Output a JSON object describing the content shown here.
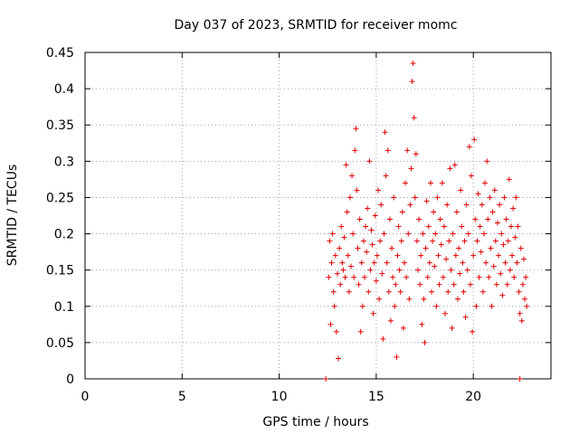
{
  "chart_data": {
    "type": "scatter",
    "title": "Day 037 of 2023, SRMTID for receiver momc",
    "xlabel": "GPS time / hours",
    "ylabel": "SRMTID / TECUs",
    "xlim": [
      0,
      24
    ],
    "ylim": [
      0,
      0.45
    ],
    "xticks": [
      0,
      5,
      10,
      15,
      20
    ],
    "xtick_labels": [
      "0",
      "5",
      "10",
      "15",
      "20"
    ],
    "yticks": [
      0,
      0.05,
      0.1,
      0.15,
      0.2,
      0.25,
      0.3,
      0.35,
      0.4,
      0.45
    ],
    "ytick_labels": [
      "0",
      "0.05",
      "0.1",
      "0.15",
      "0.2",
      "0.25",
      "0.3",
      "0.35",
      "0.4",
      "0.45"
    ],
    "grid": true,
    "marker": "plus",
    "color": "#e00000",
    "series": [
      {
        "name": "SRMTID",
        "points": [
          [
            12.4,
            0.0
          ],
          [
            22.4,
            0.0
          ],
          [
            12.55,
            0.14
          ],
          [
            12.6,
            0.19
          ],
          [
            12.65,
            0.075
          ],
          [
            12.7,
            0.16
          ],
          [
            12.75,
            0.2
          ],
          [
            12.8,
            0.12
          ],
          [
            12.85,
            0.1
          ],
          [
            12.9,
            0.17
          ],
          [
            12.95,
            0.065
          ],
          [
            13.0,
            0.145
          ],
          [
            13.05,
            0.028
          ],
          [
            13.1,
            0.18
          ],
          [
            13.15,
            0.13
          ],
          [
            13.2,
            0.21
          ],
          [
            13.25,
            0.16
          ],
          [
            13.3,
            0.15
          ],
          [
            13.35,
            0.195
          ],
          [
            13.4,
            0.14
          ],
          [
            13.45,
            0.295
          ],
          [
            13.5,
            0.23
          ],
          [
            13.55,
            0.17
          ],
          [
            13.6,
            0.12
          ],
          [
            13.65,
            0.25
          ],
          [
            13.7,
            0.155
          ],
          [
            13.75,
            0.28
          ],
          [
            13.8,
            0.2
          ],
          [
            13.85,
            0.14
          ],
          [
            13.9,
            0.315
          ],
          [
            13.95,
            0.345
          ],
          [
            14.0,
            0.26
          ],
          [
            14.05,
            0.18
          ],
          [
            14.1,
            0.13
          ],
          [
            14.15,
            0.22
          ],
          [
            14.2,
            0.065
          ],
          [
            14.25,
            0.16
          ],
          [
            14.3,
            0.1
          ],
          [
            14.35,
            0.19
          ],
          [
            14.4,
            0.14
          ],
          [
            14.45,
            0.21
          ],
          [
            14.5,
            0.175
          ],
          [
            14.55,
            0.235
          ],
          [
            14.6,
            0.12
          ],
          [
            14.65,
            0.3
          ],
          [
            14.7,
            0.15
          ],
          [
            14.75,
            0.205
          ],
          [
            14.8,
            0.185
          ],
          [
            14.85,
            0.09
          ],
          [
            14.9,
            0.16
          ],
          [
            14.95,
            0.225
          ],
          [
            15.0,
            0.135
          ],
          [
            15.05,
            0.17
          ],
          [
            15.1,
            0.26
          ],
          [
            15.15,
            0.11
          ],
          [
            15.2,
            0.19
          ],
          [
            15.25,
            0.24
          ],
          [
            15.3,
            0.145
          ],
          [
            15.35,
            0.055
          ],
          [
            15.4,
            0.2
          ],
          [
            15.45,
            0.34
          ],
          [
            15.5,
            0.28
          ],
          [
            15.55,
            0.16
          ],
          [
            15.6,
            0.315
          ],
          [
            15.65,
            0.12
          ],
          [
            15.7,
            0.22
          ],
          [
            15.75,
            0.08
          ],
          [
            15.8,
            0.18
          ],
          [
            15.85,
            0.14
          ],
          [
            15.9,
            0.25
          ],
          [
            15.95,
            0.1
          ],
          [
            16.0,
            0.13
          ],
          [
            16.05,
            0.03
          ],
          [
            16.1,
            0.17
          ],
          [
            16.15,
            0.21
          ],
          [
            16.2,
            0.15
          ],
          [
            16.25,
            0.12
          ],
          [
            16.3,
            0.19
          ],
          [
            16.35,
            0.23
          ],
          [
            16.4,
            0.07
          ],
          [
            16.45,
            0.16
          ],
          [
            16.5,
            0.27
          ],
          [
            16.55,
            0.14
          ],
          [
            16.6,
            0.315
          ],
          [
            16.65,
            0.2
          ],
          [
            16.7,
            0.11
          ],
          [
            16.75,
            0.24
          ],
          [
            16.8,
            0.29
          ],
          [
            16.85,
            0.41
          ],
          [
            16.9,
            0.435
          ],
          [
            16.95,
            0.36
          ],
          [
            17.0,
            0.25
          ],
          [
            17.05,
            0.31
          ],
          [
            17.1,
            0.19
          ],
          [
            17.15,
            0.15
          ],
          [
            17.2,
            0.22
          ],
          [
            17.25,
            0.13
          ],
          [
            17.3,
            0.17
          ],
          [
            17.35,
            0.075
          ],
          [
            17.4,
            0.2
          ],
          [
            17.45,
            0.11
          ],
          [
            17.5,
            0.05
          ],
          [
            17.55,
            0.18
          ],
          [
            17.6,
            0.245
          ],
          [
            17.65,
            0.14
          ],
          [
            17.7,
            0.21
          ],
          [
            17.75,
            0.16
          ],
          [
            17.8,
            0.27
          ],
          [
            17.85,
            0.12
          ],
          [
            17.9,
            0.19
          ],
          [
            17.95,
            0.23
          ],
          [
            18.0,
            0.155
          ],
          [
            18.05,
            0.2
          ],
          [
            18.1,
            0.1
          ],
          [
            18.15,
            0.25
          ],
          [
            18.2,
            0.17
          ],
          [
            18.25,
            0.13
          ],
          [
            18.3,
            0.22
          ],
          [
            18.35,
            0.185
          ],
          [
            18.4,
            0.27
          ],
          [
            18.45,
            0.14
          ],
          [
            18.5,
            0.21
          ],
          [
            18.55,
            0.09
          ],
          [
            18.6,
            0.165
          ],
          [
            18.65,
            0.24
          ],
          [
            18.7,
            0.12
          ],
          [
            18.75,
            0.19
          ],
          [
            18.8,
            0.29
          ],
          [
            18.85,
            0.15
          ],
          [
            18.9,
            0.07
          ],
          [
            18.95,
            0.2
          ],
          [
            19.0,
            0.13
          ],
          [
            19.05,
            0.295
          ],
          [
            19.1,
            0.17
          ],
          [
            19.15,
            0.23
          ],
          [
            19.2,
            0.11
          ],
          [
            19.25,
            0.18
          ],
          [
            19.3,
            0.145
          ],
          [
            19.35,
            0.26
          ],
          [
            19.4,
            0.21
          ],
          [
            19.45,
            0.16
          ],
          [
            19.5,
            0.12
          ],
          [
            19.55,
            0.19
          ],
          [
            19.6,
            0.085
          ],
          [
            19.65,
            0.24
          ],
          [
            19.7,
            0.15
          ],
          [
            19.75,
            0.2
          ],
          [
            19.8,
            0.32
          ],
          [
            19.85,
            0.13
          ],
          [
            19.9,
            0.28
          ],
          [
            19.95,
            0.065
          ],
          [
            20.0,
            0.17
          ],
          [
            20.05,
            0.33
          ],
          [
            20.1,
            0.22
          ],
          [
            20.15,
            0.1
          ],
          [
            20.2,
            0.19
          ],
          [
            20.25,
            0.255
          ],
          [
            20.3,
            0.14
          ],
          [
            20.35,
            0.21
          ],
          [
            20.4,
            0.175
          ],
          [
            20.45,
            0.24
          ],
          [
            20.5,
            0.12
          ],
          [
            20.55,
            0.2
          ],
          [
            20.6,
            0.27
          ],
          [
            20.65,
            0.16
          ],
          [
            20.7,
            0.3
          ],
          [
            20.75,
            0.22
          ],
          [
            20.8,
            0.14
          ],
          [
            20.85,
            0.25
          ],
          [
            20.9,
            0.18
          ],
          [
            20.95,
            0.1
          ],
          [
            21.0,
            0.23
          ],
          [
            21.05,
            0.155
          ],
          [
            21.1,
            0.26
          ],
          [
            21.15,
            0.19
          ],
          [
            21.2,
            0.13
          ],
          [
            21.25,
            0.215
          ],
          [
            21.3,
            0.17
          ],
          [
            21.35,
            0.24
          ],
          [
            21.4,
            0.145
          ],
          [
            21.45,
            0.2
          ],
          [
            21.5,
            0.115
          ],
          [
            21.55,
            0.185
          ],
          [
            21.6,
            0.25
          ],
          [
            21.65,
            0.16
          ],
          [
            21.7,
            0.22
          ],
          [
            21.75,
            0.13
          ],
          [
            21.8,
            0.19
          ],
          [
            21.85,
            0.275
          ],
          [
            21.9,
            0.15
          ],
          [
            21.95,
            0.21
          ],
          [
            22.0,
            0.17
          ],
          [
            22.05,
            0.235
          ],
          [
            22.1,
            0.14
          ],
          [
            22.15,
            0.195
          ],
          [
            22.2,
            0.25
          ],
          [
            22.25,
            0.16
          ],
          [
            22.3,
            0.21
          ],
          [
            22.35,
            0.12
          ],
          [
            22.4,
            0.09
          ],
          [
            22.45,
            0.18
          ],
          [
            22.5,
            0.08
          ],
          [
            22.55,
            0.13
          ],
          [
            22.6,
            0.165
          ],
          [
            22.65,
            0.11
          ],
          [
            22.7,
            0.14
          ],
          [
            22.75,
            0.1
          ]
        ]
      }
    ]
  }
}
